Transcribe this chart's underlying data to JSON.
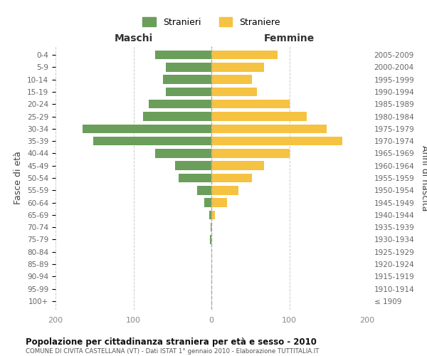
{
  "age_groups": [
    "100+",
    "95-99",
    "90-94",
    "85-89",
    "80-84",
    "75-79",
    "70-74",
    "65-69",
    "60-64",
    "55-59",
    "50-54",
    "45-49",
    "40-44",
    "35-39",
    "30-34",
    "25-29",
    "20-24",
    "15-19",
    "10-14",
    "5-9",
    "0-4"
  ],
  "birth_years": [
    "≤ 1909",
    "1910-1914",
    "1915-1919",
    "1920-1924",
    "1925-1929",
    "1930-1934",
    "1935-1939",
    "1940-1944",
    "1945-1949",
    "1950-1954",
    "1955-1959",
    "1960-1964",
    "1965-1969",
    "1970-1974",
    "1975-1979",
    "1980-1984",
    "1985-1989",
    "1990-1994",
    "1995-1999",
    "2000-2004",
    "2005-2009"
  ],
  "maschi": [
    0,
    0,
    0,
    0,
    0,
    2,
    1,
    3,
    9,
    18,
    42,
    47,
    72,
    152,
    165,
    88,
    80,
    58,
    62,
    58,
    72
  ],
  "femmine": [
    0,
    0,
    0,
    0,
    0,
    0,
    0,
    5,
    20,
    35,
    52,
    68,
    100,
    168,
    148,
    122,
    100,
    58,
    52,
    68,
    85
  ],
  "color_maschi": "#6b9e5b",
  "color_femmine": "#f5c242",
  "xlim": 200,
  "title": "Popolazione per cittadinanza straniera per età e sesso - 2010",
  "subtitle": "COMUNE DI CIVITA CASTELLANA (VT) - Dati ISTAT 1° gennaio 2010 - Elaborazione TUTTITALIA.IT",
  "ylabel_left": "Fasce di età",
  "ylabel_right": "Anni di nascita",
  "label_maschi": "Stranieri",
  "label_femmine": "Straniere",
  "header_left": "Maschi",
  "header_right": "Femmine",
  "bg_color": "#ffffff",
  "grid_color": "#cccccc",
  "tick_color": "#888888",
  "label_color": "#666666"
}
